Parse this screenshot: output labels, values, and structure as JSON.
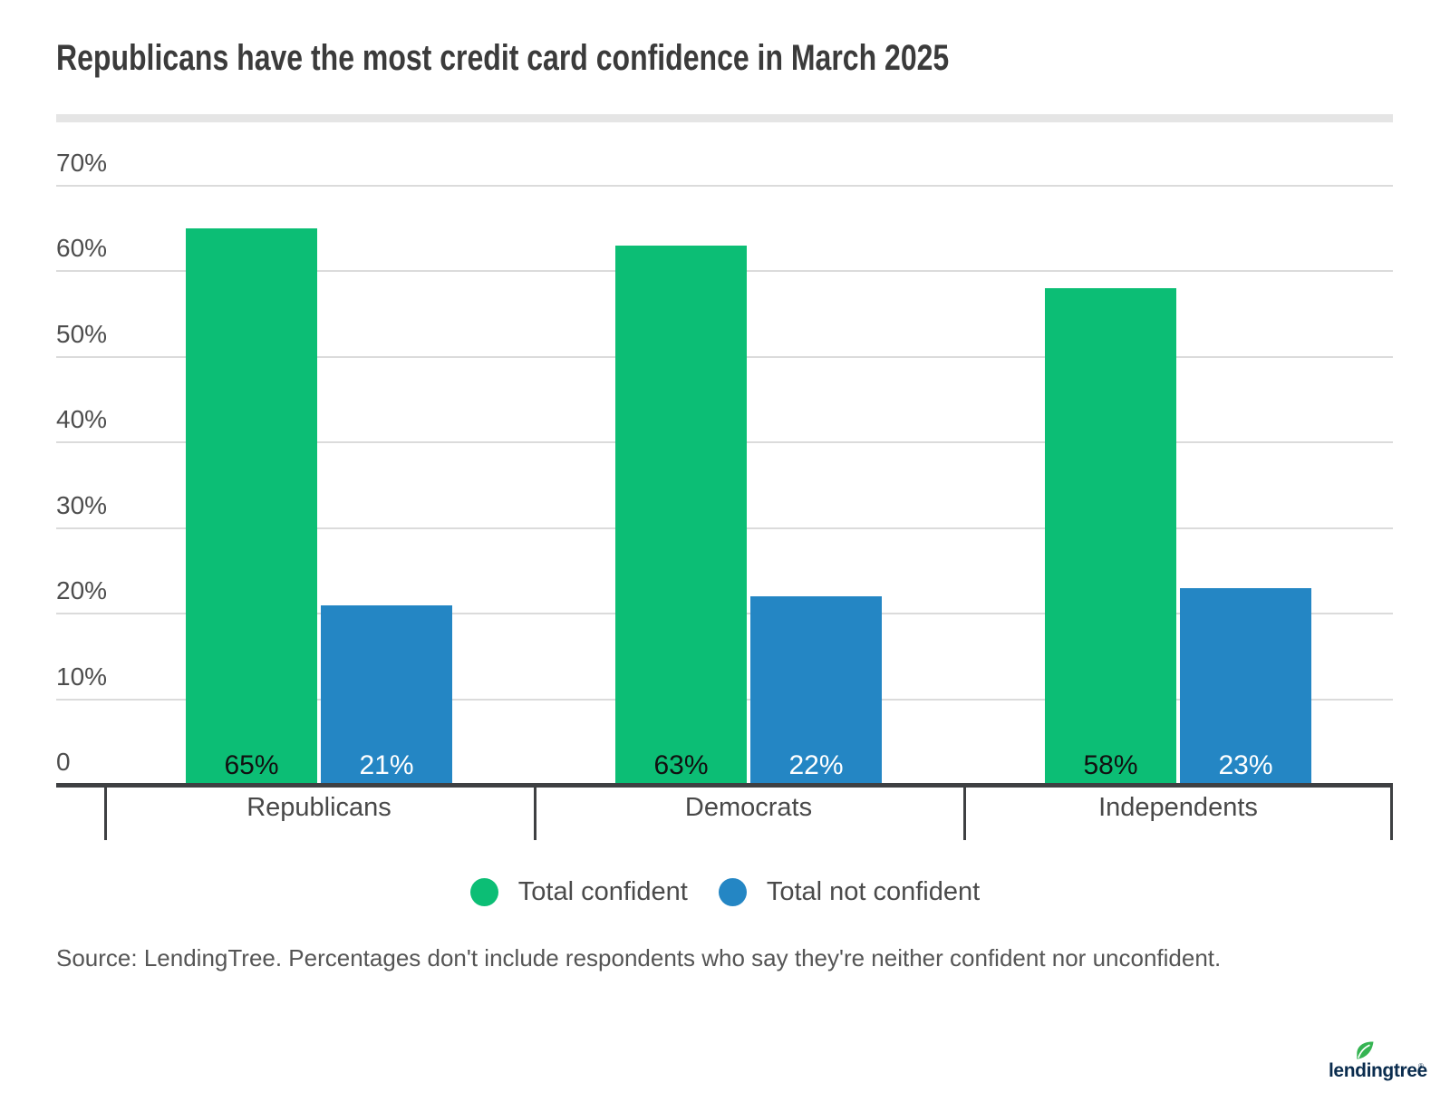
{
  "title": "Republicans have the most credit card confidence in March 2025",
  "chart_data": {
    "type": "bar",
    "categories": [
      "Republicans",
      "Democrats",
      "Independents"
    ],
    "series": [
      {
        "name": "Total confident",
        "color": "#0cbe75",
        "label_color": "#111111",
        "values": [
          65,
          63,
          58
        ]
      },
      {
        "name": "Total not confident",
        "color": "#2486c4",
        "label_color": "#ffffff",
        "values": [
          21,
          22,
          23
        ]
      }
    ],
    "value_suffix": "%",
    "y_axis": {
      "min": 0,
      "max": 70,
      "step": 10,
      "tick_labels": [
        "0",
        "10%",
        "20%",
        "30%",
        "40%",
        "50%",
        "60%",
        "70%"
      ]
    },
    "grid": true,
    "legend_position": "bottom",
    "colors": {
      "gridline": "#dbdbdb",
      "axis": "#3e4042",
      "title_text": "#3b3b3b",
      "divider": "#e5e5e5"
    }
  },
  "source_note": "Source: LendingTree. Percentages don't include respondents who say they're neither confident nor unconfident.",
  "logo": {
    "text": "lendingtree",
    "reg": "®",
    "navy": "#0a2c4e",
    "leaf_green": "#35b452"
  }
}
